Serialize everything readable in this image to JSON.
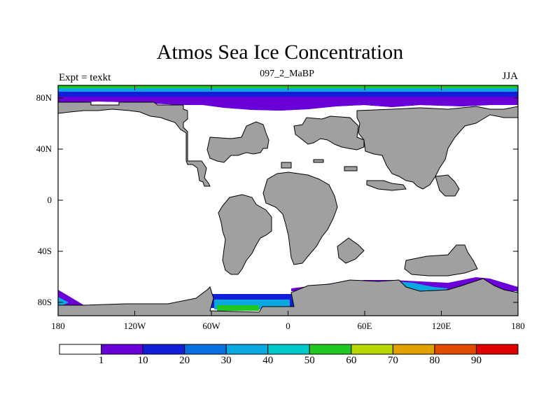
{
  "title": "Atmos Sea Ice Concentration",
  "subtitle": "097_2_MaBP",
  "left_string": "Expt = texkt",
  "right_string": "JJA",
  "colors": {
    "land": "#a0a0a0",
    "ocean": "#ffffff"
  },
  "chart_data": {
    "type": "heatmap",
    "variable": "sea ice concentration",
    "xlim": [
      -180,
      180
    ],
    "ylim": [
      -90,
      90
    ],
    "x_ticks": [
      "180",
      "120W",
      "60W",
      "0",
      "60E",
      "120E",
      "180"
    ],
    "y_ticks": [
      "80N",
      "40N",
      "0",
      "40S",
      "80S"
    ],
    "colorbar": {
      "levels": [
        1,
        10,
        20,
        30,
        40,
        50,
        60,
        70,
        80,
        90
      ],
      "labels": [
        "1",
        "10",
        "20",
        "30",
        "40",
        "50",
        "60",
        "70",
        "80",
        "90"
      ],
      "colors": [
        "#ffffff",
        "#6a00d8",
        "#1020d8",
        "#0a70e0",
        "#0aa8e0",
        "#00c8c8",
        "#22c822",
        "#b8d800",
        "#e0a000",
        "#e04a00",
        "#e00000"
      ]
    }
  }
}
